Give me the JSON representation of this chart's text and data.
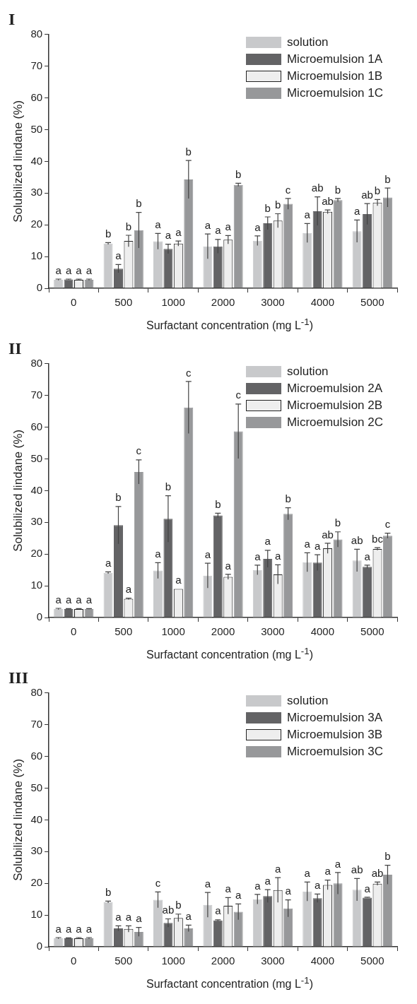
{
  "chart_data": [
    {
      "type": "bar",
      "title": "I",
      "xlabel": "Surfactant concentration (mg L$^{-1}$)",
      "ylabel": "Solubilized lindane (%)",
      "categories": [
        "0",
        "500",
        "1000",
        "2000",
        "3000",
        "4000",
        "5000"
      ],
      "ylim": [
        0,
        80
      ],
      "yticks": [
        0,
        10,
        20,
        30,
        40,
        50,
        60,
        70,
        80
      ],
      "legend": "top right",
      "grid": false,
      "series": [
        {
          "name": "solution",
          "color": "#c8c9cb",
          "values": [
            2.7,
            14.1,
            14.8,
            13.2,
            15.0,
            17.4,
            18.0
          ],
          "errors": [
            0.2,
            0.3,
            2.5,
            3.9,
            1.5,
            3.0,
            3.5
          ],
          "value_labels": [
            "a",
            "b",
            "a",
            "a",
            "a",
            "a",
            "a"
          ]
        },
        {
          "name": "Microemulsion 1A",
          "color": "#636365",
          "values": [
            2.8,
            6.2,
            12.4,
            13.2,
            20.5,
            24.3,
            23.4
          ],
          "errors": [
            0.1,
            1.3,
            1.5,
            2.2,
            2.0,
            4.5,
            3.3
          ],
          "value_labels": [
            "a",
            "a",
            "a",
            "a",
            "b",
            "ab",
            "ab"
          ]
        },
        {
          "name": "Microemulsion 1B",
          "color": "#eeeeee",
          "values": [
            2.7,
            14.9,
            14.1,
            15.3,
            21.3,
            24.1,
            27.0
          ],
          "errors": [
            0.2,
            1.8,
            0.8,
            1.3,
            2.2,
            0.6,
            1.0
          ],
          "value_labels": [
            "a",
            "b",
            "a",
            "a",
            "b",
            "ab",
            "b"
          ]
        },
        {
          "name": "Microemulsion 1C",
          "color": "#97989a",
          "values": [
            2.7,
            18.3,
            34.3,
            32.6,
            26.6,
            27.8,
            28.6
          ],
          "errors": [
            0.2,
            5.6,
            6.0,
            0.5,
            1.7,
            0.5,
            3.0
          ],
          "value_labels": [
            "a",
            "b",
            "b",
            "b",
            "c",
            "b",
            "b"
          ]
        }
      ]
    },
    {
      "type": "bar",
      "title": "II",
      "xlabel": "Surfactant concentration (mg L$^{-1}$)",
      "ylabel": "Solubilized lindane (%)",
      "categories": [
        "0",
        "500",
        "1000",
        "2000",
        "3000",
        "4000",
        "5000"
      ],
      "ylim": [
        0,
        80
      ],
      "yticks": [
        0,
        10,
        20,
        30,
        40,
        50,
        60,
        70,
        80
      ],
      "legend": "top right",
      "grid": false,
      "series": [
        {
          "name": "solution",
          "color": "#c8c9cb",
          "values": [
            2.7,
            14.1,
            14.8,
            13.2,
            15.0,
            17.4,
            18.0
          ],
          "errors": [
            0.2,
            0.3,
            2.5,
            3.9,
            1.5,
            3.0,
            3.5
          ],
          "value_labels": [
            "a",
            "a",
            "a",
            "a",
            "a",
            "a",
            "ab"
          ]
        },
        {
          "name": "Microemulsion 2A",
          "color": "#636365",
          "values": [
            2.7,
            29.1,
            31.1,
            32.2,
            18.5,
            17.3,
            16.0
          ],
          "errors": [
            0.1,
            5.9,
            7.3,
            0.7,
            2.7,
            2.5,
            0.5
          ],
          "value_labels": [
            "a",
            "b",
            "b",
            "b",
            "a",
            "a",
            "a"
          ]
        },
        {
          "name": "Microemulsion 2B",
          "color": "#eeeeee",
          "values": [
            2.7,
            5.9,
            9.0,
            12.8,
            13.6,
            21.8,
            21.6
          ],
          "errors": [
            0.1,
            0.2,
            null,
            0.8,
            3.0,
            1.6,
            0.4
          ],
          "value_labels": [
            "a",
            "a",
            "a",
            "a",
            "a",
            "ab",
            "bc"
          ]
        },
        {
          "name": "Microemulsion 2C",
          "color": "#97989a",
          "values": [
            2.7,
            45.9,
            66.2,
            58.7,
            32.7,
            24.6,
            25.8
          ],
          "errors": [
            0.1,
            3.8,
            8.2,
            8.6,
            1.9,
            2.4,
            0.8
          ],
          "value_labels": [
            "a",
            "c",
            "c",
            "c",
            "b",
            "b",
            "c"
          ]
        }
      ]
    },
    {
      "type": "bar",
      "title": "III",
      "xlabel": "Surfactant concentration (mg L$^{-1}$)",
      "ylabel": "Solubilized lindane (%)",
      "categories": [
        "0",
        "500",
        "1000",
        "2000",
        "3000",
        "4000",
        "5000"
      ],
      "ylim": [
        0,
        80
      ],
      "yticks": [
        0,
        10,
        20,
        30,
        40,
        50,
        60,
        70,
        80
      ],
      "legend": "top right",
      "grid": false,
      "series": [
        {
          "name": "solution",
          "color": "#c8c9cb",
          "values": [
            2.7,
            14.1,
            14.8,
            13.2,
            15.0,
            17.4,
            18.0
          ],
          "errors": [
            0.2,
            0.3,
            2.5,
            3.9,
            1.5,
            3.0,
            3.5
          ],
          "value_labels": [
            "a",
            "b",
            "c",
            "a",
            "a",
            "a",
            "ab"
          ]
        },
        {
          "name": "Microemulsion 3A",
          "color": "#636365",
          "values": [
            2.7,
            5.8,
            7.5,
            8.3,
            16.0,
            15.3,
            15.5
          ],
          "errors": [
            0.1,
            0.8,
            1.3,
            0.2,
            2.0,
            1.3,
            0.1
          ],
          "value_labels": [
            "a",
            "a",
            "ab",
            "a",
            "a",
            "a",
            "a"
          ]
        },
        {
          "name": "Microemulsion 3B",
          "color": "#eeeeee",
          "values": [
            2.7,
            5.6,
            9.1,
            12.9,
            17.9,
            19.5,
            19.9
          ],
          "errors": [
            0.2,
            1.0,
            1.2,
            2.6,
            3.9,
            1.5,
            0.5
          ],
          "value_labels": [
            "a",
            "a",
            "b",
            "a",
            "a",
            "a",
            "ab"
          ]
        },
        {
          "name": "Microemulsion 3C",
          "color": "#97989a",
          "values": [
            2.7,
            4.7,
            5.8,
            11.0,
            12.1,
            20.0,
            22.7
          ],
          "errors": [
            0.2,
            1.4,
            1.0,
            2.5,
            2.7,
            3.4,
            3.0
          ],
          "value_labels": [
            "a",
            "a",
            "a",
            "a",
            "a",
            "a",
            "b"
          ]
        }
      ]
    }
  ]
}
